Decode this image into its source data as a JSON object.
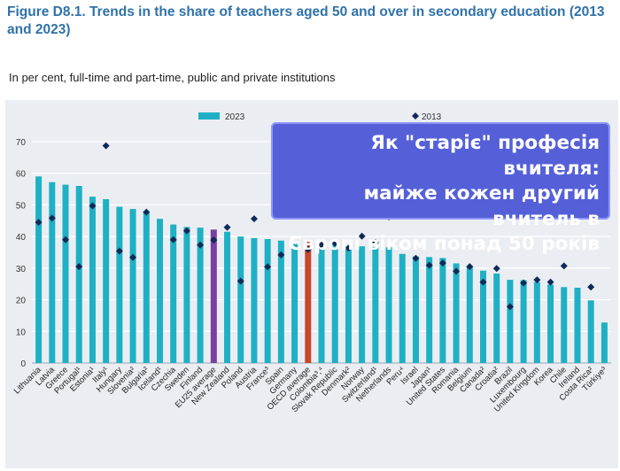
{
  "figure": {
    "title": "Figure D8.1. Trends in the share of teachers aged 50 and over in secondary education (2013 and 2023)",
    "subtitle": "In per cent, full-time and part-time, public and private institutions"
  },
  "overlay": {
    "lines": [
      "Як \"старіє\"  професія вчителя:",
      "майже кожен другий вчитель в",
      "Європі віком понад 50 років"
    ],
    "color": "#5560d8"
  },
  "chart_data": {
    "type": "bar",
    "legend": [
      "2023",
      "2013"
    ],
    "legend_placement": "top",
    "ylim": [
      0,
      70
    ],
    "yticks": [
      0,
      10,
      20,
      30,
      40,
      50,
      60,
      70
    ],
    "grid": true,
    "colors": {
      "bar": "#1fb0c4",
      "eu": "#7b3fa0",
      "oecd": "#c8462a",
      "marker": "#0f2a57"
    },
    "highlight": {
      "EU25 average": "eu",
      "OECD average": "oecd"
    },
    "categories": [
      "Lithuania",
      "Latvia",
      "Greece",
      "Portugal¹",
      "Estonia¹",
      "Italy¹",
      "Hungary",
      "Slovenia²",
      "Bulgaria²",
      "Iceland¹",
      "Czechia",
      "Sweden",
      "Finland",
      "EU25 average",
      "New Zealand",
      "Poland",
      "Austria",
      "France³",
      "Spain",
      "Germany",
      "OECD average",
      "Colombia³,⁴",
      "Slovak Republic",
      "Denmark²",
      "Norway",
      "Switzerland¹",
      "Netherlands",
      "Peru⁴",
      "Israel",
      "Japan¹",
      "United States",
      "Romania",
      "Belgium",
      "Canada²",
      "Croatia²",
      "Brazil",
      "Luxembourg",
      "United Kingdom",
      "Korea",
      "Chile",
      "Ireland",
      "Costa Rica²",
      "Türkiye³"
    ],
    "series": [
      {
        "name": "2023",
        "values": [
          59,
          57.2,
          56.4,
          56,
          52.6,
          51.8,
          49.4,
          48.7,
          48,
          45.6,
          43.8,
          43,
          42.8,
          42.2,
          41.5,
          40,
          39.5,
          39.2,
          38.7,
          38.5,
          38.4,
          37.6,
          37.4,
          37,
          36.9,
          36.7,
          36.6,
          34.5,
          33.7,
          33.5,
          33.2,
          31.5,
          30.6,
          29.2,
          28.3,
          26.3,
          26.2,
          25.6,
          24.8,
          24,
          23.8,
          19.8,
          12.8
        ]
      },
      {
        "name": "2013",
        "values": [
          44.5,
          45.8,
          39,
          30.5,
          49.7,
          68.7,
          35.4,
          33.4,
          47.7,
          null,
          39,
          41.8,
          37.3,
          38.9,
          42.9,
          25.9,
          45.6,
          30.4,
          34.2,
          48.9,
          35.9,
          37.3,
          37.9,
          36.3,
          40.1,
          38.1,
          46.2,
          null,
          33.1,
          30.9,
          31.6,
          29,
          30.5,
          25.6,
          29.9,
          17.8,
          25.3,
          26.3,
          25.6,
          30.7,
          null,
          24,
          null
        ]
      }
    ]
  }
}
